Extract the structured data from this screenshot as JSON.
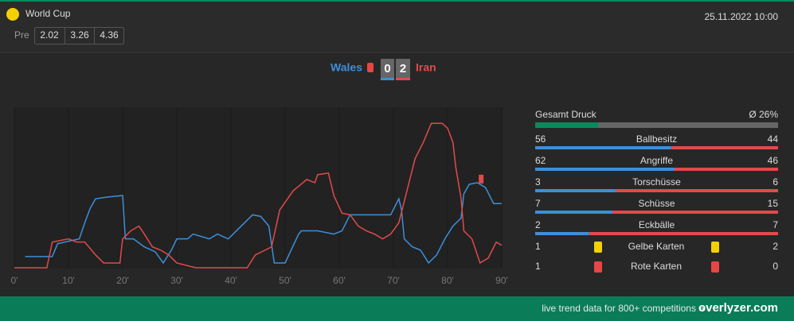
{
  "header": {
    "competition": "World Cup",
    "odds_label": "Pre",
    "odds": [
      "2.02",
      "3.26",
      "4.36"
    ],
    "date": "25.11.2022 10:00"
  },
  "score": {
    "home": 0,
    "away": 2
  },
  "chart_data": {
    "type": "line",
    "xlim": [
      0,
      90
    ],
    "ylim": [
      0,
      100
    ],
    "xticks": [
      {
        "value": 0,
        "label": "0'"
      },
      {
        "value": 10,
        "label": "10'"
      },
      {
        "value": 20,
        "label": "20'"
      },
      {
        "value": 30,
        "label": "30'"
      },
      {
        "value": 40,
        "label": "40'"
      },
      {
        "value": 50,
        "label": "50'"
      },
      {
        "value": 60,
        "label": "60'"
      },
      {
        "value": 70,
        "label": "70'"
      },
      {
        "value": 80,
        "label": "80'"
      },
      {
        "value": 90,
        "label": "90'"
      }
    ],
    "grid": true,
    "series": [
      {
        "name": "Wales",
        "color": "#3d8fd9",
        "x": [
          2,
          7,
          8,
          12,
          13,
          14,
          15,
          17,
          20,
          20.5,
          22,
          24,
          26,
          27.5,
          29,
          30,
          32,
          33,
          36,
          37.5,
          39.5,
          41,
          42.5,
          44,
          45.5,
          47,
          48,
          50,
          52.5,
          53,
          56,
          59,
          60.5,
          62,
          66,
          69.5,
          71,
          71.5,
          72,
          73.5,
          75,
          76.5,
          78,
          79.5,
          81,
          82.5,
          83,
          84,
          85.5,
          87,
          88.5,
          90
        ],
        "values": [
          7,
          7,
          15,
          18,
          28,
          37,
          43,
          44,
          45,
          18,
          18,
          13,
          10,
          3,
          11,
          18,
          18,
          21,
          18,
          21,
          18,
          23,
          28,
          33,
          32,
          26,
          3,
          3,
          21,
          23,
          23,
          21,
          23,
          33,
          33,
          33,
          43,
          36,
          18,
          13,
          11,
          3,
          8,
          18,
          26,
          31,
          46,
          52,
          53,
          50,
          40,
          40
        ]
      },
      {
        "name": "Iran",
        "color": "#e24a4a",
        "x": [
          0,
          6,
          7,
          10,
          11.5,
          13,
          15,
          16.5,
          19.5,
          20,
          21.5,
          23,
          24,
          25.5,
          27,
          28.5,
          30,
          33.5,
          43,
          44.5,
          47.5,
          49,
          51.5,
          54,
          55.5,
          56,
          58,
          59,
          60.5,
          62,
          63.5,
          65,
          66.5,
          68,
          69.5,
          71,
          72.5,
          74,
          75.5,
          77,
          79,
          80,
          81,
          81.5,
          82.5,
          83,
          84.5,
          86,
          87.5,
          89,
          90
        ],
        "values": [
          0,
          0,
          16,
          18,
          16,
          16,
          8,
          3,
          3,
          18,
          23,
          26,
          21,
          13,
          11,
          8,
          3,
          0,
          0,
          8,
          13,
          36,
          48,
          55,
          53,
          58,
          59,
          45,
          34,
          33,
          26,
          23,
          21,
          18,
          21,
          28,
          48,
          68,
          78,
          90,
          90,
          87,
          78,
          63,
          43,
          23,
          18,
          3,
          6,
          16,
          14
        ],
        "marker": {
          "x": 86.2,
          "y": 55
        }
      }
    ]
  },
  "stats": {
    "pressure": {
      "label": "Gesamt Druck",
      "value_label": "Ø 26%",
      "value": 26,
      "color": "#0a8a5c"
    },
    "rows": [
      {
        "label": "Ballbesitz",
        "home": 56,
        "away": 44
      },
      {
        "label": "Angriffe",
        "home": 62,
        "away": 46
      },
      {
        "label": "Torschüsse",
        "home": 3,
        "away": 6
      },
      {
        "label": "Schüsse",
        "home": 7,
        "away": 15
      },
      {
        "label": "Eckbälle",
        "home": 2,
        "away": 7
      }
    ],
    "cards": [
      {
        "label": "Gelbe Karten",
        "home": 1,
        "away": 2,
        "color": "#f5d000"
      },
      {
        "label": "Rote Karten",
        "home": 1,
        "away": 0,
        "color": "#e84545"
      }
    ]
  },
  "footer": {
    "text": "live trend data for 800+ competitions »",
    "brand": "overlyzer.com"
  }
}
